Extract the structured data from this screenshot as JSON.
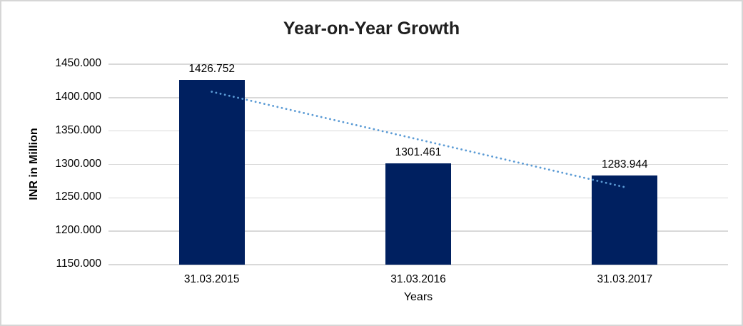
{
  "frame": {
    "background": "#FFFFFF",
    "border_color": "#D6D6D6"
  },
  "chart_data": {
    "type": "bar",
    "title": "Year-on-Year Growth",
    "xlabel": "Years",
    "ylabel": "INR in Million",
    "categories": [
      "31.03.2015",
      "31.03.2016",
      "31.03.2017"
    ],
    "values": [
      1426.752,
      1301.461,
      1283.944
    ],
    "data_labels": [
      "1426.752",
      "1301.461",
      "1283.944"
    ],
    "ylim": [
      1150,
      1450
    ],
    "y_tick_values": [
      1450,
      1400,
      1350,
      1300,
      1250,
      1200,
      1150
    ],
    "y_tick_labels": [
      "1450.000",
      "1400.000",
      "1350.000",
      "1300.000",
      "1250.000",
      "1200.000",
      "1150.000"
    ],
    "grid": "horizontal",
    "legend": "none",
    "bar_color": "#002060",
    "gridline_color": "#D9D9D9",
    "trendline": {
      "type": "linear",
      "style": "dotted",
      "color": "#5B9BD5",
      "start_value": 1408.8,
      "end_value": 1266.0
    }
  }
}
